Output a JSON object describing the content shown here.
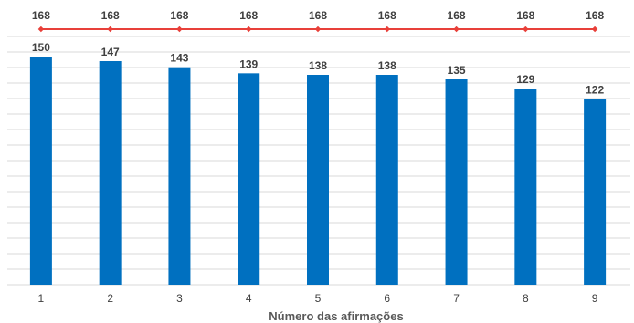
{
  "chart_data": {
    "type": "bar",
    "categories": [
      "1",
      "2",
      "3",
      "4",
      "5",
      "6",
      "7",
      "8",
      "9"
    ],
    "series": [
      {
        "values": [
          150,
          147,
          143,
          139,
          138,
          138,
          135,
          129,
          122
        ],
        "color": "#0070C0",
        "kind": "bar"
      },
      {
        "values": [
          168,
          168,
          168,
          168,
          168,
          168,
          168,
          168,
          168
        ],
        "color": "#E8403A",
        "kind": "line"
      }
    ],
    "title": "",
    "xlabel": "Número das afirmações",
    "ylabel": "",
    "ylim": [
      0,
      168
    ],
    "grid": true,
    "legend": "none"
  }
}
